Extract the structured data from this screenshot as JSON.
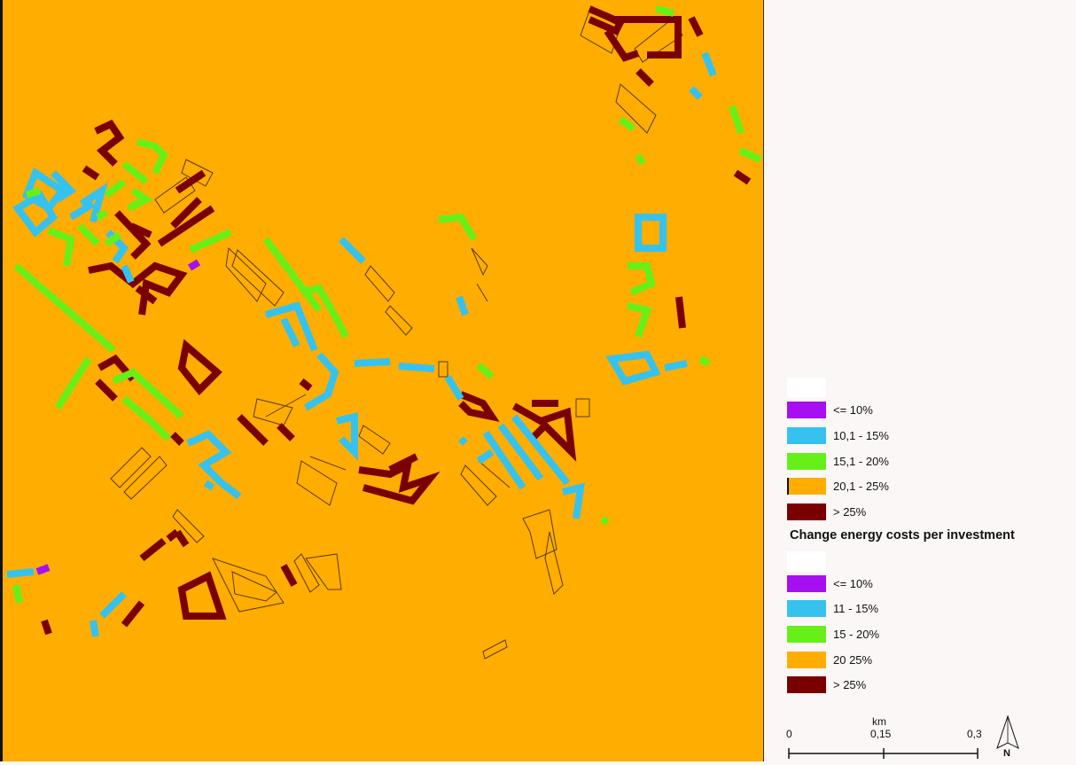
{
  "colors": {
    "background": "#ffad00",
    "purple": "#a60ff0",
    "cyan": "#36c2ee",
    "green": "#66f018",
    "orange": "#ffad00",
    "darkred": "#7a0000"
  },
  "legend1": {
    "items": [
      {
        "label": "<= 10%",
        "color": "#a60ff0"
      },
      {
        "label": "10,1 - 15%",
        "color": "#36c2ee"
      },
      {
        "label": "15,1 - 20%",
        "color": "#66f018"
      },
      {
        "label": "20,1 - 25%",
        "color": "#ffad00"
      },
      {
        "label": "> 25%",
        "color": "#7a0000"
      }
    ]
  },
  "legend2": {
    "title": "Change energy costs per investment",
    "items": [
      {
        "label": "<= 10%",
        "color": "#a60ff0"
      },
      {
        "label": "11 - 15%",
        "color": "#36c2ee"
      },
      {
        "label": "15 - 20%",
        "color": "#66f018"
      },
      {
        "label": "20  25%",
        "color": "#ffad00"
      },
      {
        "label": "> 25%",
        "color": "#7a0000"
      }
    ]
  },
  "scalebar": {
    "unit": "km",
    "ticks": [
      "0",
      "0,15",
      "0,3"
    ]
  },
  "north_arrow": {
    "label": "N",
    "icon": "north-arrow-icon"
  }
}
